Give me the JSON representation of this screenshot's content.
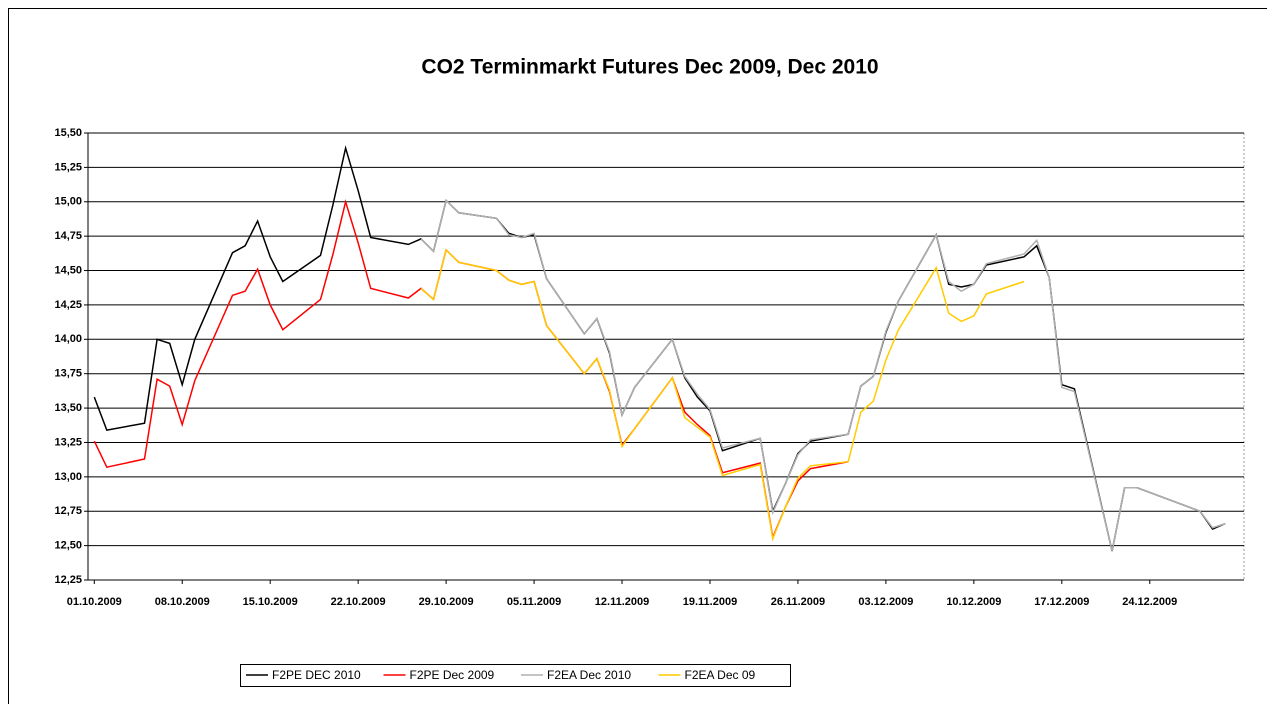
{
  "chart_data": {
    "type": "line",
    "title": "CO2 Terminmarkt Futures Dec 2009, Dec 2010",
    "x": [
      "01.10.2009",
      "02.10.2009",
      "05.10.2009",
      "06.10.2009",
      "07.10.2009",
      "08.10.2009",
      "09.10.2009",
      "12.10.2009",
      "13.10.2009",
      "14.10.2009",
      "15.10.2009",
      "16.10.2009",
      "19.10.2009",
      "20.10.2009",
      "21.10.2009",
      "22.10.2009",
      "23.10.2009",
      "26.10.2009",
      "27.10.2009",
      "28.10.2009",
      "29.10.2009",
      "30.10.2009",
      "02.11.2009",
      "03.11.2009",
      "04.11.2009",
      "05.11.2009",
      "06.11.2009",
      "09.11.2009",
      "10.11.2009",
      "11.11.2009",
      "12.11.2009",
      "13.11.2009",
      "16.11.2009",
      "17.11.2009",
      "18.11.2009",
      "19.11.2009",
      "20.11.2009",
      "23.11.2009",
      "24.11.2009",
      "25.11.2009",
      "26.11.2009",
      "27.11.2009",
      "30.11.2009",
      "01.12.2009",
      "02.12.2009",
      "03.12.2009",
      "04.12.2009",
      "07.12.2009",
      "08.12.2009",
      "09.12.2009",
      "10.12.2009",
      "11.12.2009",
      "14.12.2009",
      "15.12.2009",
      "16.12.2009",
      "17.12.2009",
      "18.12.2009",
      "21.12.2009",
      "22.12.2009",
      "23.12.2009",
      "28.12.2009",
      "29.12.2009",
      "30.12.2009"
    ],
    "series": [
      {
        "name": "F2PE DEC 2010",
        "color": "#000000",
        "values": [
          13.58,
          13.34,
          13.39,
          14.0,
          13.97,
          13.67,
          14.0,
          14.63,
          14.68,
          14.86,
          14.6,
          14.42,
          14.61,
          14.98,
          15.39,
          15.08,
          14.74,
          14.69,
          14.73,
          14.64,
          15.01,
          14.92,
          14.88,
          14.77,
          14.74,
          14.76,
          14.44,
          14.04,
          14.15,
          13.9,
          13.45,
          13.65,
          14.0,
          13.72,
          13.58,
          13.48,
          13.19,
          13.28,
          12.75,
          12.95,
          13.17,
          13.26,
          13.31,
          13.66,
          13.73,
          14.05,
          14.28,
          14.76,
          14.4,
          14.38,
          14.4,
          14.54,
          14.6,
          14.68,
          14.45,
          13.67,
          13.64,
          12.46,
          12.92,
          12.92,
          12.75,
          12.62,
          12.66
        ]
      },
      {
        "name": "F2PE Dec 2009",
        "color": "#ff0000",
        "values": [
          13.26,
          13.07,
          13.13,
          13.71,
          13.66,
          13.38,
          13.7,
          14.32,
          14.35,
          14.51,
          14.25,
          14.07,
          14.29,
          14.62,
          15.0,
          14.7,
          14.37,
          14.3,
          14.37,
          14.29,
          14.65,
          14.56,
          14.5,
          14.43,
          14.4,
          14.42,
          14.1,
          13.75,
          13.86,
          13.62,
          13.23,
          13.35,
          13.72,
          13.47,
          13.38,
          13.3,
          13.03,
          13.1,
          12.56,
          12.78,
          12.97,
          13.06,
          13.11,
          null,
          null,
          null,
          null,
          null,
          null,
          null,
          null,
          null,
          null,
          null,
          null,
          null,
          null,
          null,
          null,
          null,
          null,
          null,
          null
        ]
      },
      {
        "name": "F2EA Dec 2010",
        "color": "#b0b0b0",
        "values": [
          null,
          null,
          null,
          null,
          null,
          null,
          null,
          null,
          null,
          null,
          null,
          null,
          null,
          null,
          null,
          null,
          null,
          null,
          14.73,
          14.64,
          15.01,
          14.92,
          14.88,
          14.76,
          14.74,
          14.77,
          14.44,
          14.04,
          14.15,
          13.91,
          13.45,
          13.65,
          14.0,
          13.73,
          13.6,
          13.49,
          13.21,
          13.28,
          12.74,
          12.95,
          13.16,
          13.27,
          13.31,
          13.66,
          13.73,
          14.06,
          14.28,
          14.76,
          14.42,
          14.35,
          14.4,
          14.55,
          14.62,
          14.72,
          14.45,
          13.65,
          13.62,
          12.46,
          12.92,
          12.92,
          12.75,
          12.63,
          12.66
        ]
      },
      {
        "name": "F2EA Dec 09",
        "color": "#ffcc00",
        "values": [
          null,
          null,
          null,
          null,
          null,
          null,
          null,
          null,
          null,
          null,
          null,
          null,
          null,
          null,
          null,
          null,
          null,
          null,
          14.37,
          14.29,
          14.65,
          14.56,
          14.5,
          14.43,
          14.4,
          14.42,
          14.1,
          13.75,
          13.86,
          13.63,
          13.22,
          13.35,
          13.72,
          13.43,
          13.36,
          13.29,
          13.01,
          13.09,
          12.55,
          12.78,
          12.99,
          13.08,
          13.11,
          13.47,
          13.55,
          13.85,
          14.07,
          14.52,
          14.19,
          14.13,
          14.17,
          14.33,
          14.42,
          null,
          null,
          null,
          null,
          null,
          null,
          null,
          null,
          null,
          null
        ]
      }
    ],
    "xlim": [
      "01.10.2009",
      "31.12.2009"
    ],
    "xticks": [
      "01.10.2009",
      "08.10.2009",
      "15.10.2009",
      "22.10.2009",
      "29.10.2009",
      "05.11.2009",
      "12.11.2009",
      "19.11.2009",
      "26.11.2009",
      "03.12.2009",
      "10.12.2009",
      "17.12.2009",
      "24.12.2009"
    ],
    "ylim": [
      12.25,
      15.5
    ],
    "yticks": [
      {
        "value": 12.25,
        "label": "12,25"
      },
      {
        "value": 12.5,
        "label": "12,50"
      },
      {
        "value": 12.75,
        "label": "12,75"
      },
      {
        "value": 13,
        "label": "13,00"
      },
      {
        "value": 13.25,
        "label": "13,25"
      },
      {
        "value": 13.5,
        "label": "13,50"
      },
      {
        "value": 13.75,
        "label": "13,75"
      },
      {
        "value": 14,
        "label": "14,00"
      },
      {
        "value": 14.25,
        "label": "14,25"
      },
      {
        "value": 14.5,
        "label": "14,50"
      },
      {
        "value": 14.75,
        "label": "14,75"
      },
      {
        "value": 15,
        "label": "15,00"
      },
      {
        "value": 15.25,
        "label": "15,25"
      },
      {
        "value": 15.5,
        "label": "15,50"
      }
    ],
    "grid": true,
    "legend": "bottom"
  }
}
